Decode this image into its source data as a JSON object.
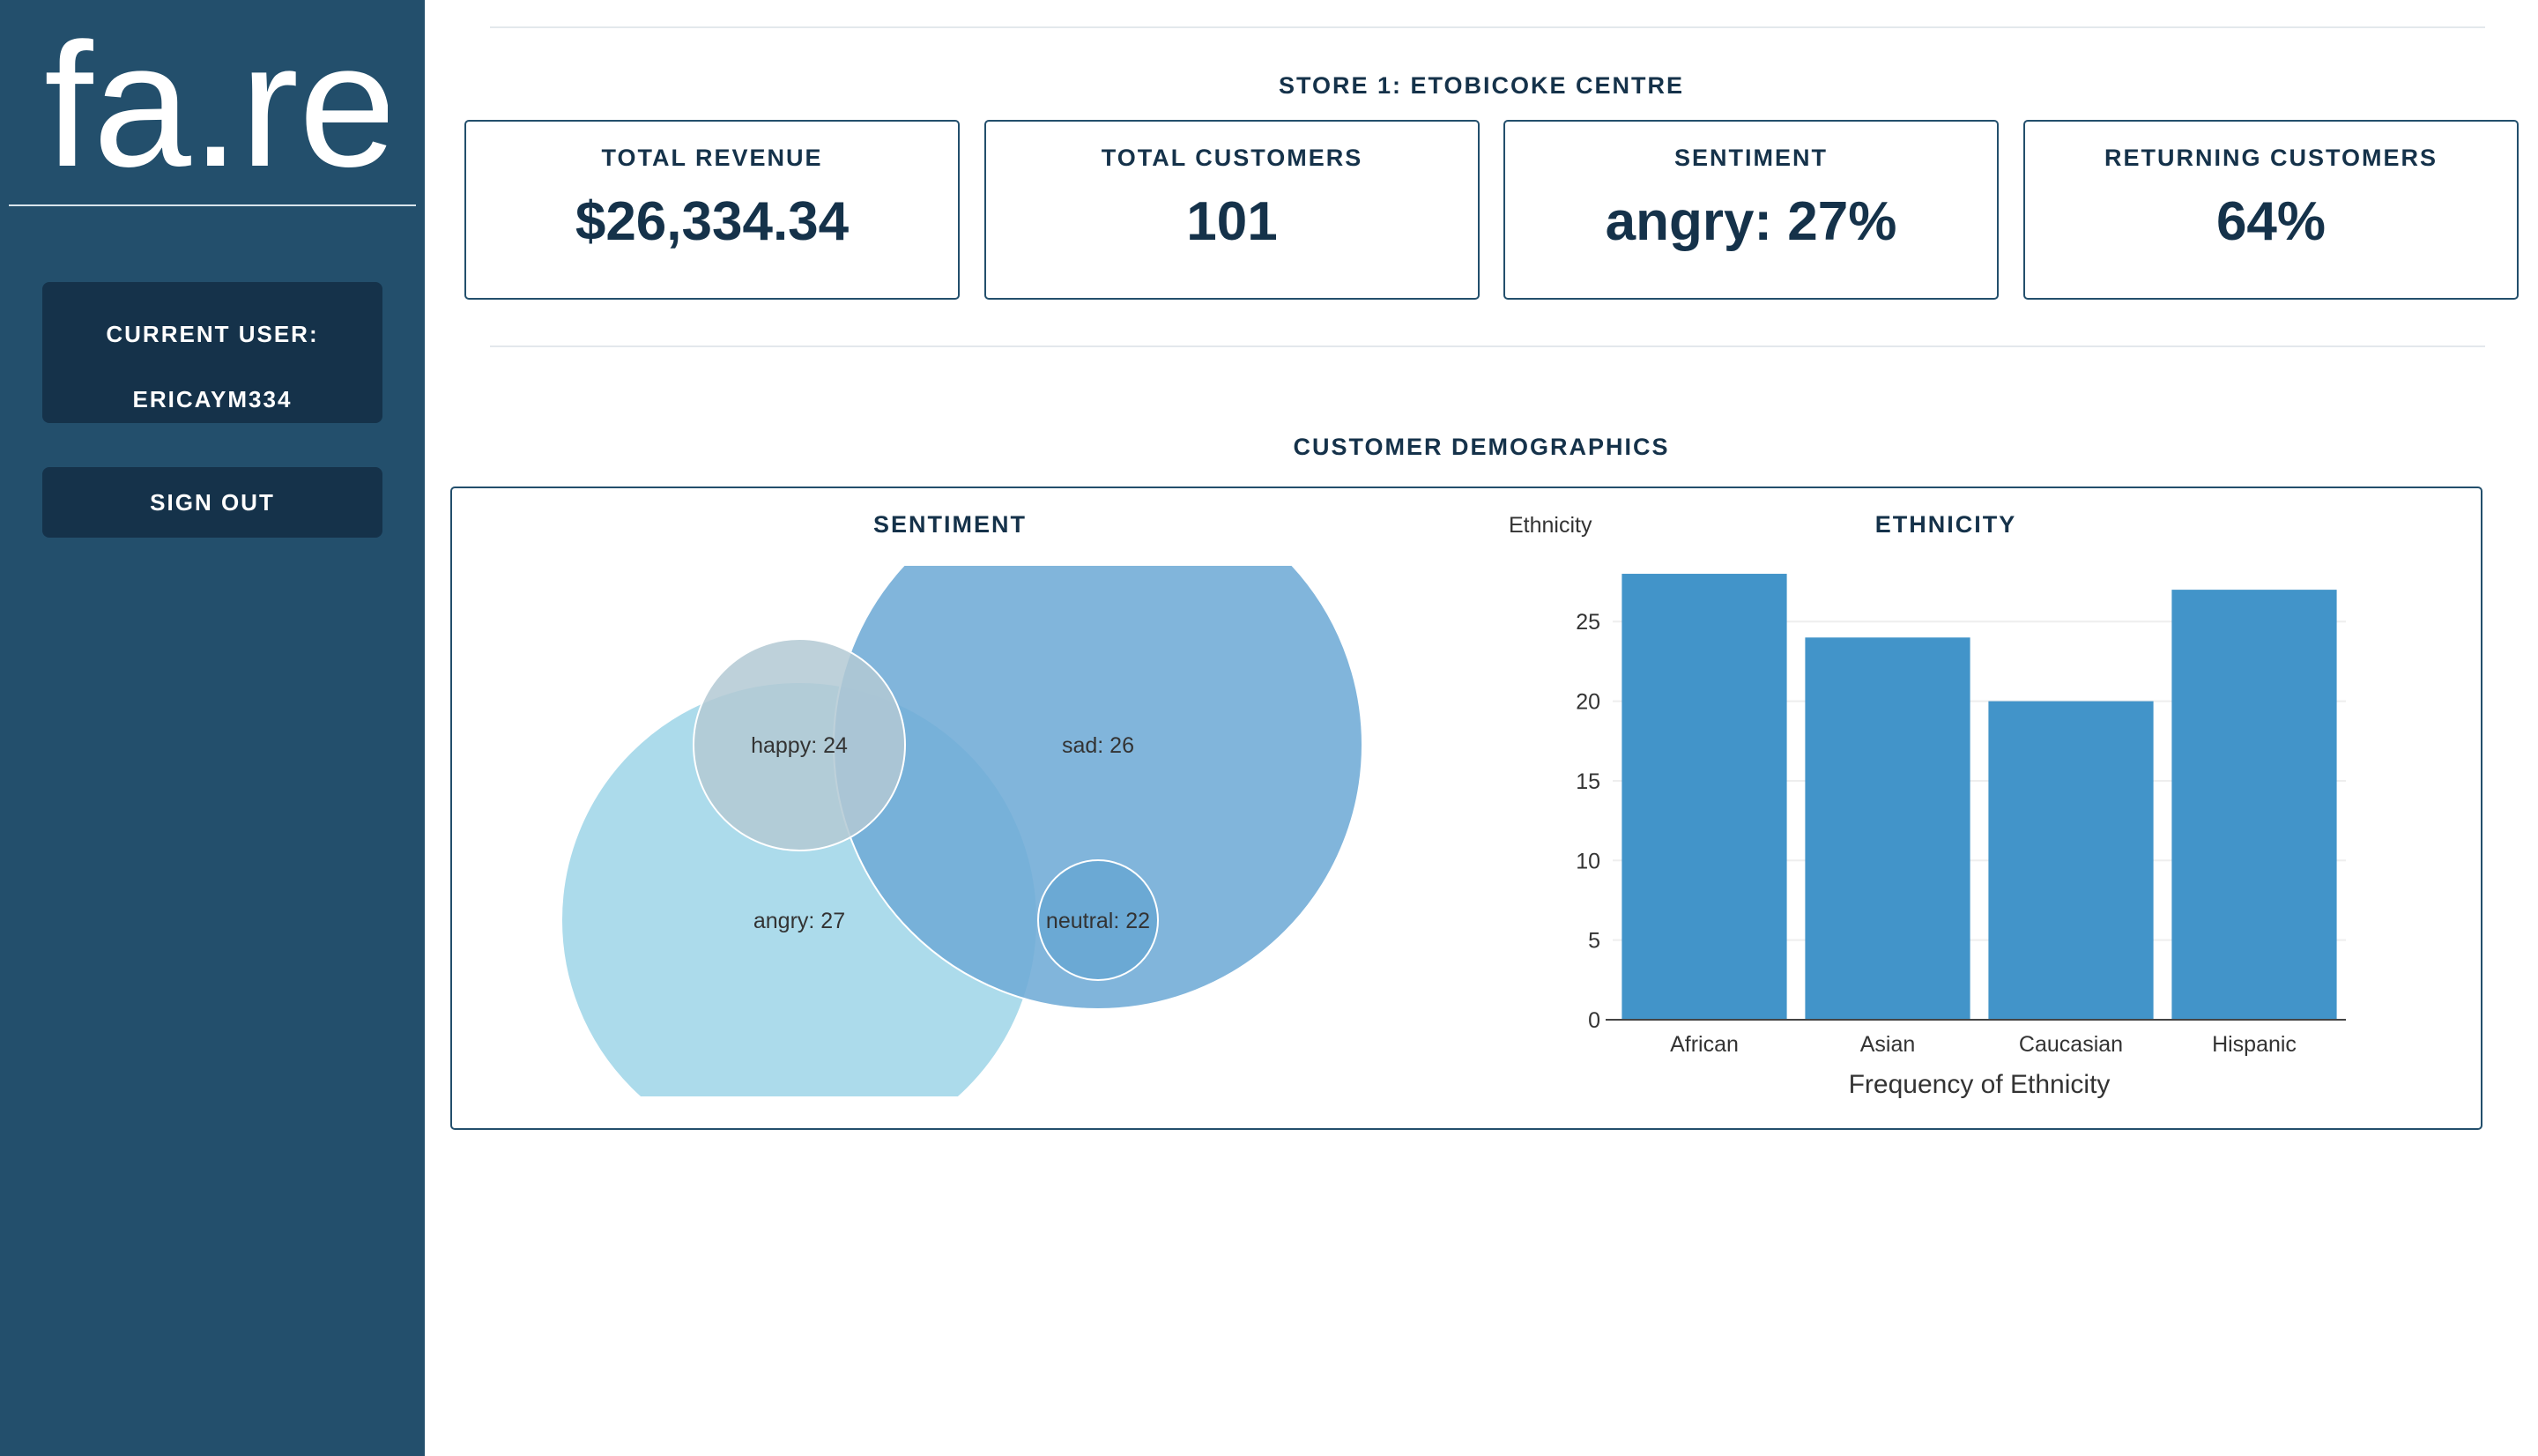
{
  "sidebar": {
    "logo_text": "fa.re",
    "current_user_label": "CURRENT USER:",
    "current_user": "ERICAYM334",
    "sign_out": "SIGN OUT"
  },
  "store": {
    "title": "STORE 1: ETOBICOKE CENTRE"
  },
  "kpis": [
    {
      "label": "TOTAL REVENUE",
      "value": "$26,334.34"
    },
    {
      "label": "TOTAL CUSTOMERS",
      "value": "101"
    },
    {
      "label": "SENTIMENT",
      "value": "angry: 27%"
    },
    {
      "label": "RETURNING CUSTOMERS",
      "value": "64%"
    }
  ],
  "demographics": {
    "title": "CUSTOMER DEMOGRAPHICS",
    "sentiment_title": "SENTIMENT",
    "ethnicity_title": "ETHNICITY"
  },
  "colors": {
    "sidebar": "#234f6c",
    "dark": "#15324a",
    "bar": "#4294c9",
    "angry": "#a8d9ea",
    "sad": "#6fabd6",
    "happy": "#b3c9d4",
    "neutral": "#5a9fcd"
  },
  "chart_data": [
    {
      "type": "bubble",
      "title": "SENTIMENT",
      "series": [
        {
          "name": "happy",
          "value": 24,
          "label": "happy: 24"
        },
        {
          "name": "sad",
          "value": 26,
          "label": "sad: 26"
        },
        {
          "name": "angry",
          "value": 27,
          "label": "angry: 27"
        },
        {
          "name": "neutral",
          "value": 22,
          "label": "neutral: 22"
        }
      ]
    },
    {
      "type": "bar",
      "title": "ETHNICITY",
      "categories": [
        "African",
        "Asian",
        "Caucasian",
        "Hispanic"
      ],
      "values": [
        28,
        24,
        20,
        27
      ],
      "ylabel": "Ethnicity",
      "xlabel": "Frequency of Ethnicity",
      "yticks": [
        0,
        5,
        10,
        15,
        20,
        25
      ],
      "ylim": [
        0,
        28.5
      ],
      "grid": true
    }
  ]
}
